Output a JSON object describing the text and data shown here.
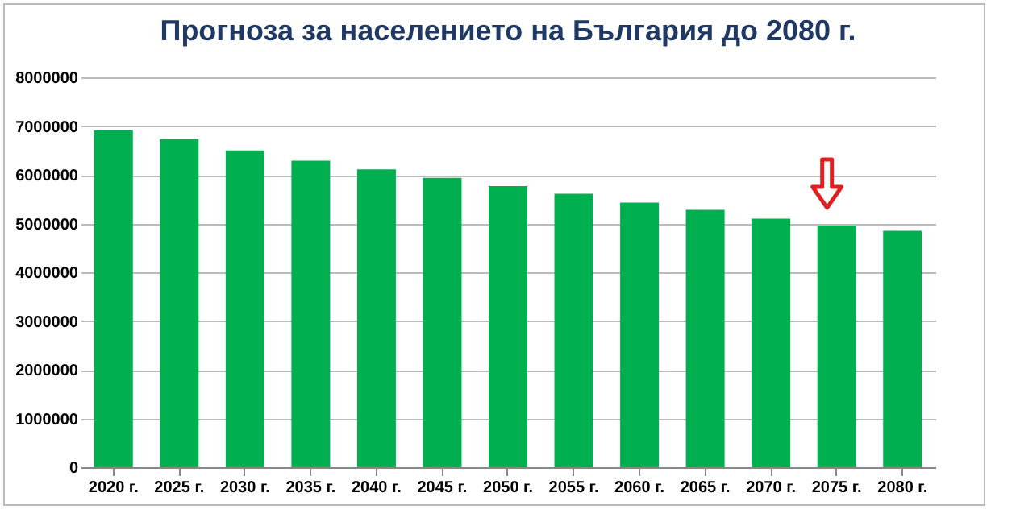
{
  "chart_data": {
    "type": "bar",
    "title": "Прогноза за населението на България до 2080 г.",
    "categories": [
      "2020 г.",
      "2025 г.",
      "2030 г.",
      "2035 г.",
      "2040 г.",
      "2045 г.",
      "2050 г.",
      "2055 г.",
      "2060 г.",
      "2065 г.",
      "2070 г.",
      "2075 г.",
      "2080 г."
    ],
    "values": [
      6910000,
      6730000,
      6500000,
      6290000,
      6110000,
      5940000,
      5770000,
      5610000,
      5430000,
      5280000,
      5100000,
      4960000,
      4850000
    ],
    "color": "#00b050",
    "ylim": [
      0,
      8000000
    ],
    "yticks": [
      0,
      1000000,
      2000000,
      3000000,
      4000000,
      5000000,
      6000000,
      7000000,
      8000000
    ],
    "grid": "y"
  }
}
